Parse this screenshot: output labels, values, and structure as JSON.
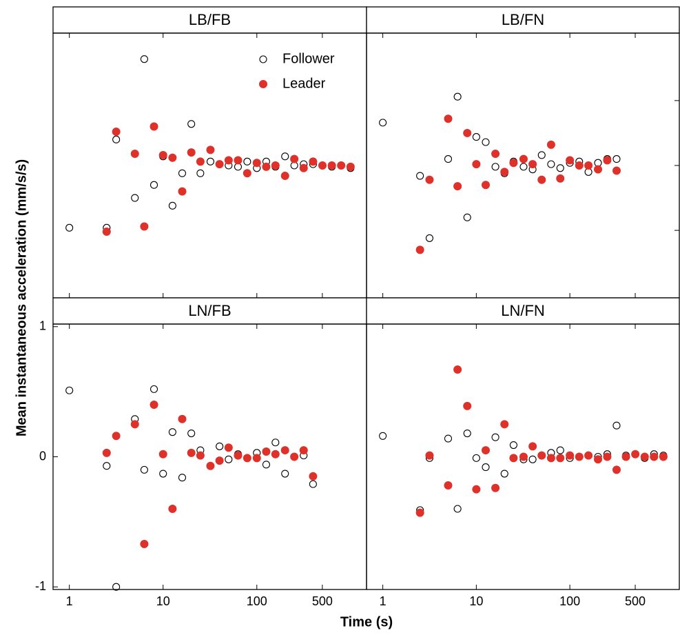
{
  "x_label": "Time (s)",
  "y_label": "Mean instantaneous acceleration (mm/s/s)",
  "chart_data": [
    {
      "type": "scatter",
      "title": "LB/FB",
      "log_x": true,
      "xlim": [
        0.67,
        1480
      ],
      "ylim": [
        -1.02,
        1.02
      ],
      "xticks": [
        1,
        10,
        100,
        500
      ],
      "tick_labels": false,
      "legend": "upper right",
      "series": [
        {
          "name": "Follower",
          "color": "#000000",
          "marker": "open",
          "x": [
            1,
            2.5,
            3.16,
            5,
            6.3,
            8,
            10,
            12.6,
            16,
            20,
            25,
            32,
            40,
            50,
            63,
            79,
            100,
            126,
            158,
            200,
            251,
            316,
            398,
            501,
            631,
            794,
            1000
          ],
          "values": [
            -0.48,
            -0.48,
            0.2,
            -0.25,
            0.82,
            -0.15,
            0.07,
            -0.31,
            -0.06,
            0.32,
            -0.06,
            0.03,
            0.01,
            0,
            -0.01,
            0.03,
            -0.02,
            0.03,
            -0.01,
            0.07,
            0,
            0.01,
            0.01,
            0,
            -0.01,
            0,
            -0.02
          ]
        },
        {
          "name": "Leader",
          "color": "#e0302a",
          "marker": "filled",
          "x": [
            2.5,
            3.16,
            5,
            6.3,
            8,
            10,
            12.6,
            16,
            20,
            25,
            32,
            40,
            50,
            63,
            79,
            100,
            126,
            158,
            200,
            251,
            316,
            398,
            501,
            631,
            794,
            1000
          ],
          "values": [
            -0.51,
            0.26,
            0.09,
            -0.47,
            0.3,
            0.08,
            0.06,
            -0.2,
            0.1,
            0.03,
            0.12,
            0.01,
            0.04,
            0.04,
            -0.06,
            0.02,
            -0.01,
            0,
            -0.08,
            0.05,
            -0.02,
            0.03,
            0,
            0,
            0,
            -0.01
          ]
        }
      ]
    },
    {
      "type": "scatter",
      "title": "LB/FN",
      "log_x": true,
      "xlim": [
        0.67,
        1480
      ],
      "ylim": [
        -1.02,
        1.02
      ],
      "xticks": [
        1,
        10,
        100,
        500
      ],
      "yticks": [
        -0.5,
        0,
        0.5
      ],
      "ytick_side": "right",
      "tick_labels": false,
      "series": [
        {
          "name": "Follower",
          "color": "#000000",
          "marker": "open",
          "x": [
            1,
            2.5,
            3.16,
            5,
            6.3,
            8,
            10,
            12.6,
            16,
            20,
            25,
            32,
            40,
            50,
            63,
            79,
            100,
            126,
            158,
            200,
            251,
            316
          ],
          "values": [
            0.33,
            -0.08,
            -0.56,
            0.05,
            0.53,
            -0.4,
            0.22,
            0.18,
            -0.01,
            -0.06,
            0.03,
            -0.01,
            -0.03,
            0.08,
            0.01,
            -0.02,
            0.02,
            0.03,
            -0.05,
            0.02,
            0.05,
            0.05
          ]
        },
        {
          "name": "Leader",
          "color": "#e0302a",
          "marker": "filled",
          "x": [
            2.5,
            3.16,
            5,
            6.3,
            8,
            10,
            12.6,
            16,
            20,
            25,
            32,
            40,
            50,
            63,
            79,
            100,
            126,
            158,
            200,
            251,
            316
          ],
          "values": [
            -0.65,
            -0.11,
            0.36,
            -0.16,
            0.25,
            0.01,
            -0.15,
            0.09,
            -0.05,
            0.02,
            0.05,
            0.01,
            -0.11,
            0.16,
            -0.1,
            0.04,
            0,
            0,
            -0.03,
            0.04,
            -0.04
          ]
        }
      ]
    },
    {
      "type": "scatter",
      "title": "LN/FB",
      "log_x": true,
      "xlim": [
        0.67,
        1480
      ],
      "ylim": [
        -1.02,
        1.02
      ],
      "xticks": [
        1,
        10,
        100,
        500
      ],
      "yticks": [
        -1,
        0,
        1
      ],
      "ytick_side": "left",
      "tick_labels": true,
      "series": [
        {
          "name": "Follower",
          "color": "#000000",
          "marker": "open",
          "x": [
            1,
            2.5,
            3.16,
            5,
            6.3,
            8,
            10,
            12.6,
            16,
            20,
            25,
            32,
            40,
            50,
            63,
            79,
            100,
            126,
            158,
            200,
            251,
            316,
            398
          ],
          "values": [
            0.51,
            -0.07,
            -1.0,
            0.29,
            -0.1,
            0.52,
            -0.13,
            0.19,
            -0.16,
            0.18,
            0.05,
            -0.07,
            0.08,
            -0.02,
            0.02,
            -0.01,
            0.03,
            -0.06,
            0.11,
            -0.13,
            0,
            0.01,
            -0.21
          ]
        },
        {
          "name": "Leader",
          "color": "#e0302a",
          "marker": "filled",
          "x": [
            2.5,
            3.16,
            5,
            6.3,
            8,
            10,
            12.6,
            16,
            20,
            25,
            32,
            40,
            50,
            63,
            79,
            100,
            126,
            158,
            200,
            251,
            316,
            398
          ],
          "values": [
            0.03,
            0.16,
            0.25,
            -0.67,
            0.4,
            0.02,
            -0.4,
            0.29,
            0.03,
            0.01,
            -0.07,
            -0.03,
            0.07,
            0.01,
            -0.01,
            -0.01,
            0.04,
            0.02,
            0.05,
            0,
            0.05,
            -0.15
          ]
        }
      ]
    },
    {
      "type": "scatter",
      "title": "LN/FN",
      "log_x": true,
      "xlim": [
        0.67,
        1480
      ],
      "ylim": [
        -1.02,
        1.02
      ],
      "xticks": [
        1,
        10,
        100,
        500
      ],
      "tick_labels": true,
      "series": [
        {
          "name": "Follower",
          "color": "#000000",
          "marker": "open",
          "x": [
            1,
            2.5,
            3.16,
            5,
            6.3,
            8,
            10,
            12.6,
            16,
            20,
            25,
            32,
            40,
            50,
            63,
            79,
            100,
            126,
            158,
            200,
            251,
            316,
            398,
            501,
            631,
            794,
            1000
          ],
          "values": [
            0.16,
            -0.41,
            -0.01,
            0.14,
            -0.4,
            0.18,
            -0.01,
            -0.08,
            0.15,
            -0.13,
            0.09,
            -0.02,
            -0.02,
            0.01,
            0.03,
            0.05,
            -0.01,
            0,
            0.01,
            0,
            0.02,
            0.24,
            0.01,
            0.02,
            -0.01,
            0.02,
            0.01
          ]
        },
        {
          "name": "Leader",
          "color": "#e0302a",
          "marker": "filled",
          "x": [
            2.5,
            3.16,
            5,
            6.3,
            8,
            10,
            12.6,
            16,
            20,
            25,
            32,
            40,
            50,
            63,
            79,
            100,
            126,
            158,
            200,
            251,
            316,
            398,
            501,
            631,
            794,
            1000
          ],
          "values": [
            -0.43,
            0.01,
            -0.22,
            0.67,
            0.39,
            -0.25,
            0.05,
            -0.24,
            0.25,
            -0.01,
            0,
            0.08,
            0.01,
            -0.01,
            -0.01,
            0.01,
            0,
            0.01,
            -0.02,
            0,
            -0.1,
            0,
            0.02,
            0,
            0,
            0
          ]
        }
      ]
    }
  ]
}
